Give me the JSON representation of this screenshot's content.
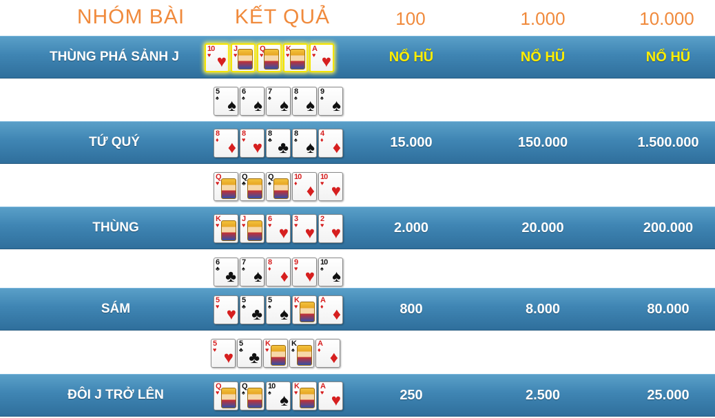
{
  "header": {
    "group_label": "NHÓM BÀI",
    "result_label": "KẾT QUẢ",
    "bets": [
      "100",
      "1.000",
      "10.000"
    ]
  },
  "colors": {
    "header_text": "#f08a3c",
    "row_band": "#3f85b3",
    "jackpot_text": "#ffee00",
    "red_suit": "#d61f1f",
    "black_suit": "#111111"
  },
  "rows": [
    {
      "name": "THÙNG PHÁ SẢNH J",
      "payouts": [
        "NỔ HŨ",
        "NỔ HŨ",
        "NỔ HŨ"
      ],
      "jackpot": true,
      "cards": [
        {
          "rank": "10",
          "suit": "hearts",
          "highlight": true
        },
        {
          "rank": "J",
          "suit": "hearts",
          "highlight": true
        },
        {
          "rank": "Q",
          "suit": "hearts",
          "highlight": true
        },
        {
          "rank": "K",
          "suit": "hearts",
          "highlight": true
        },
        {
          "rank": "A",
          "suit": "hearts",
          "highlight": true
        }
      ],
      "example": [
        {
          "rank": "5",
          "suit": "spades"
        },
        {
          "rank": "6",
          "suit": "spades"
        },
        {
          "rank": "7",
          "suit": "spades"
        },
        {
          "rank": "8",
          "suit": "spades"
        },
        {
          "rank": "9",
          "suit": "spades"
        }
      ]
    },
    {
      "name": "TỨ QUÝ",
      "payouts": [
        "15.000",
        "150.000",
        "1.500.000"
      ],
      "cards": [
        {
          "rank": "8",
          "suit": "diamonds"
        },
        {
          "rank": "8",
          "suit": "hearts"
        },
        {
          "rank": "8",
          "suit": "clubs"
        },
        {
          "rank": "8",
          "suit": "spades"
        },
        {
          "rank": "4",
          "suit": "diamonds"
        }
      ],
      "example": [
        {
          "rank": "Q",
          "suit": "hearts"
        },
        {
          "rank": "Q",
          "suit": "clubs"
        },
        {
          "rank": "Q",
          "suit": "spades"
        },
        {
          "rank": "10",
          "suit": "diamonds"
        },
        {
          "rank": "10",
          "suit": "hearts"
        }
      ]
    },
    {
      "name": "THÙNG",
      "payouts": [
        "2.000",
        "20.000",
        "200.000"
      ],
      "cards": [
        {
          "rank": "K",
          "suit": "hearts"
        },
        {
          "rank": "J",
          "suit": "hearts"
        },
        {
          "rank": "6",
          "suit": "hearts"
        },
        {
          "rank": "3",
          "suit": "hearts"
        },
        {
          "rank": "2",
          "suit": "hearts"
        }
      ],
      "example": [
        {
          "rank": "6",
          "suit": "clubs"
        },
        {
          "rank": "7",
          "suit": "spades"
        },
        {
          "rank": "8",
          "suit": "diamonds"
        },
        {
          "rank": "9",
          "suit": "hearts"
        },
        {
          "rank": "10",
          "suit": "spades"
        }
      ]
    },
    {
      "name": "SÁM",
      "payouts": [
        "800",
        "8.000",
        "80.000"
      ],
      "cards": [
        {
          "rank": "5",
          "suit": "hearts"
        },
        {
          "rank": "5",
          "suit": "clubs"
        },
        {
          "rank": "5",
          "suit": "spades"
        },
        {
          "rank": "K",
          "suit": "hearts"
        },
        {
          "rank": "A",
          "suit": "diamonds"
        }
      ],
      "example": [
        {
          "rank": "5",
          "suit": "hearts"
        },
        {
          "rank": "5",
          "suit": "clubs"
        },
        {
          "rank": "K",
          "suit": "hearts"
        },
        {
          "rank": "K",
          "suit": "spades"
        },
        {
          "rank": "A",
          "suit": "diamonds"
        }
      ]
    },
    {
      "name": "ĐÔI J TRỞ LÊN",
      "payouts": [
        "250",
        "2.500",
        "25.000"
      ],
      "cards": [
        {
          "rank": "Q",
          "suit": "hearts"
        },
        {
          "rank": "Q",
          "suit": "spades"
        },
        {
          "rank": "10",
          "suit": "spades"
        },
        {
          "rank": "K",
          "suit": "hearts"
        },
        {
          "rank": "A",
          "suit": "hearts"
        }
      ]
    }
  ]
}
